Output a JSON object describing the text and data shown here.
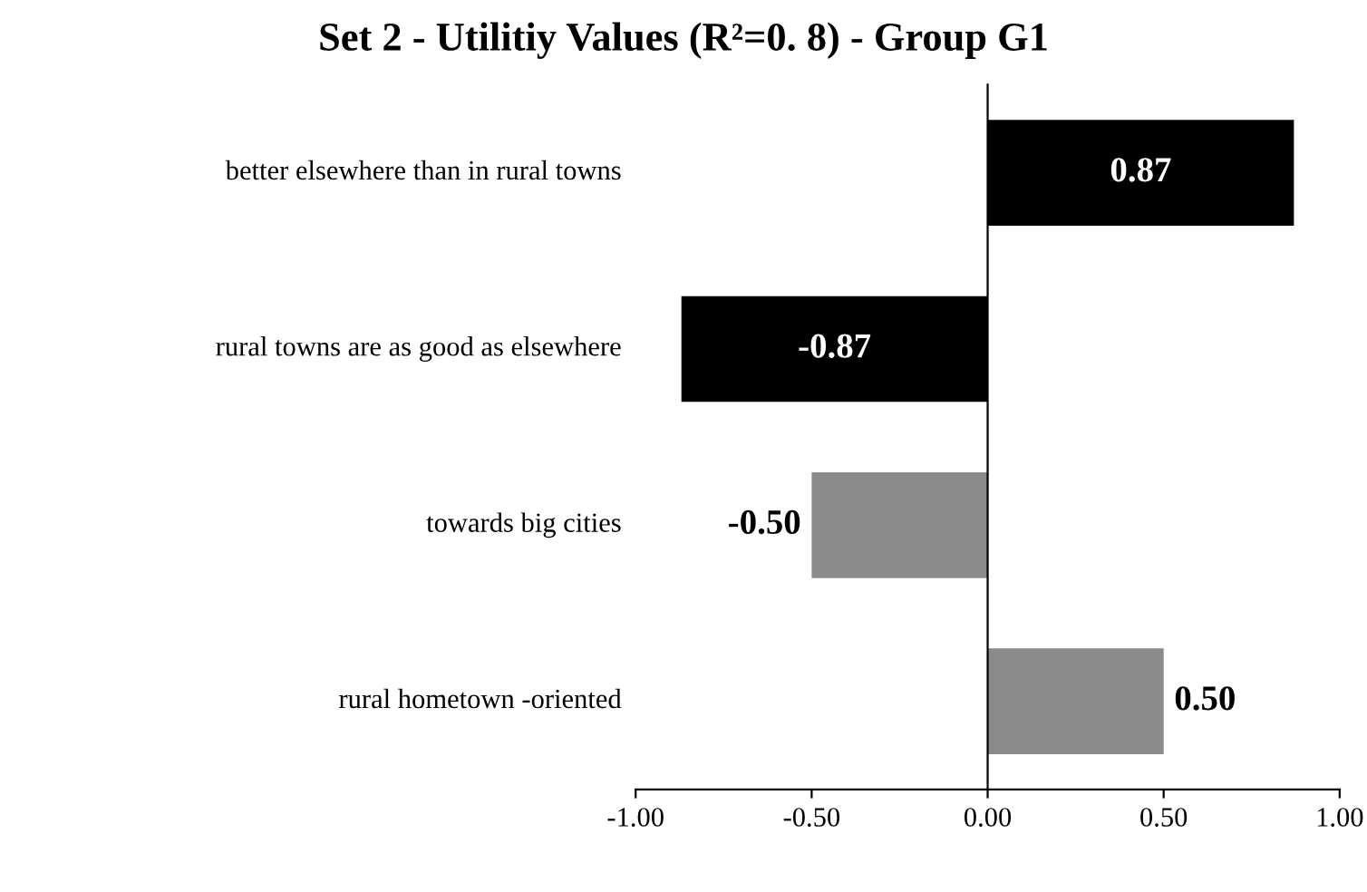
{
  "chart_data": {
    "type": "bar",
    "orientation": "horizontal",
    "title": "Set 2 - Utilitiy Values (R²=0. 8) - Group G1",
    "categories": [
      "better elsewhere than in rural towns",
      "rural towns are as good as elsewhere",
      "towards big cities",
      "rural hometown -oriented"
    ],
    "values": [
      0.87,
      -0.87,
      -0.5,
      0.5
    ],
    "colors": [
      "#000000",
      "#000000",
      "#8a8a8a",
      "#8a8a8a"
    ],
    "value_labels": [
      "0.87",
      "-0.87",
      "-0.50",
      "0.50"
    ],
    "xlim": [
      -1,
      1
    ],
    "xticks": [
      {
        "value": -1,
        "label": "-1.00"
      },
      {
        "value": -0.5,
        "label": "-0.50"
      },
      {
        "value": 0,
        "label": "0.00"
      },
      {
        "value": 0.5,
        "label": "0.50"
      },
      {
        "value": 1,
        "label": "1.00"
      }
    ]
  }
}
